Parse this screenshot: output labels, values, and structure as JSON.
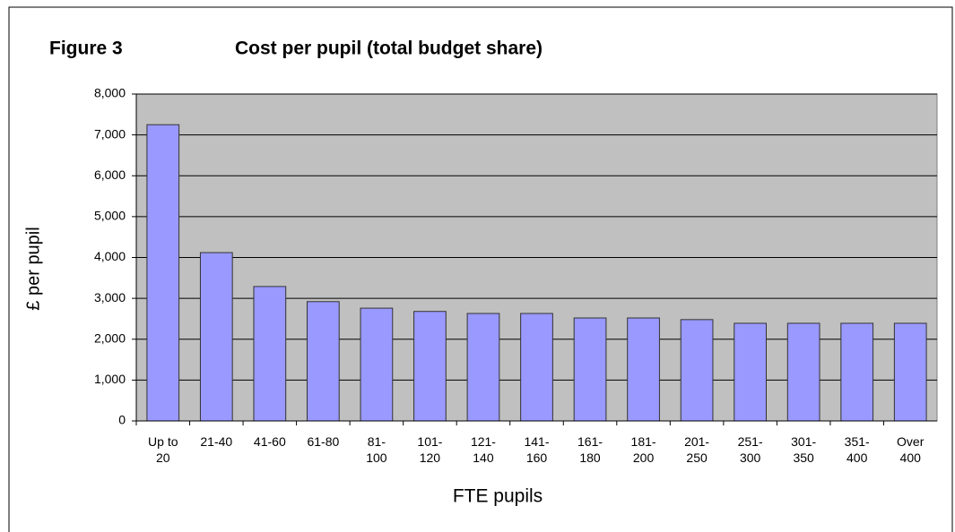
{
  "chart_data": {
    "type": "bar",
    "figure_label": "Figure 3",
    "title": "Cost per pupil (total budget share)",
    "x_label": "FTE pupils",
    "y_label": "£ per pupil",
    "categories": [
      "Up to 20",
      "21-40",
      "41-60",
      "61-80",
      "81-100",
      "101-120",
      "121-140",
      "141-160",
      "161-180",
      "181-200",
      "201-250",
      "251-300",
      "301-350",
      "351-400",
      "Over 400"
    ],
    "values": [
      7250,
      4120,
      3290,
      2920,
      2760,
      2680,
      2630,
      2630,
      2520,
      2520,
      2480,
      2390,
      2390,
      2390,
      2390
    ],
    "color": "#9999ff",
    "ylim": [
      0,
      8000
    ],
    "yticks": [
      0,
      {
        "value": 1000,
        "label": "1,000"
      },
      {
        "value": 2000,
        "label": "2,000"
      },
      {
        "value": 3000,
        "label": "3,000"
      },
      {
        "value": 4000,
        "label": "4,000"
      },
      {
        "value": 5000,
        "label": "5,000"
      },
      {
        "value": 6000,
        "label": "6,000"
      },
      {
        "value": 7000,
        "label": "7,000"
      },
      {
        "value": 8000,
        "label": "8,000"
      }
    ],
    "grid": true
  }
}
